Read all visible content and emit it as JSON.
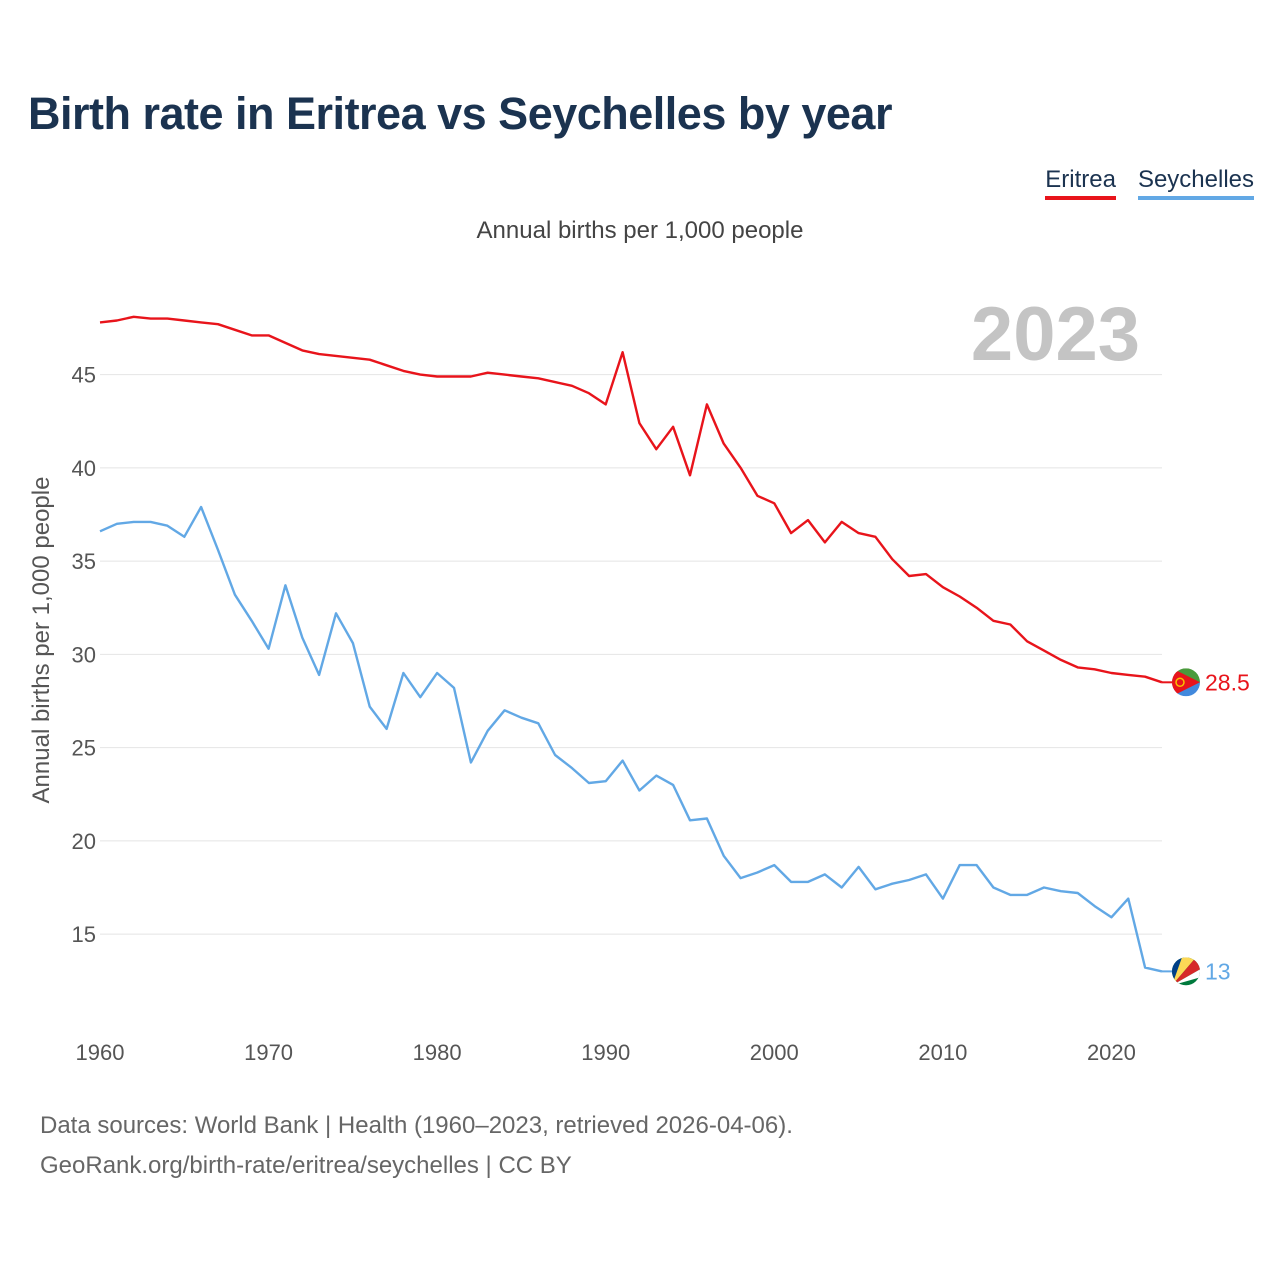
{
  "chart_data": {
    "type": "line",
    "title": "Birth rate in Eritrea vs Seychelles by year",
    "subtitle": "Annual births per 1,000 people",
    "ylabel": "Annual births per 1,000 people",
    "xlabel": "",
    "year_label": "2023",
    "xlim": [
      1960,
      2023
    ],
    "ylim": [
      10.5,
      49
    ],
    "yticks": [
      15,
      20,
      25,
      30,
      35,
      40,
      45
    ],
    "xticks": [
      1960,
      1970,
      1980,
      1990,
      2000,
      2010,
      2020
    ],
    "legend_position": "top-right",
    "x": [
      1960,
      1961,
      1962,
      1963,
      1964,
      1965,
      1966,
      1967,
      1968,
      1969,
      1970,
      1971,
      1972,
      1973,
      1974,
      1975,
      1976,
      1977,
      1978,
      1979,
      1980,
      1981,
      1982,
      1983,
      1984,
      1985,
      1986,
      1987,
      1988,
      1989,
      1990,
      1991,
      1992,
      1993,
      1994,
      1995,
      1996,
      1997,
      1998,
      1999,
      2000,
      2001,
      2002,
      2003,
      2004,
      2005,
      2006,
      2007,
      2008,
      2009,
      2010,
      2011,
      2012,
      2013,
      2014,
      2015,
      2016,
      2017,
      2018,
      2019,
      2020,
      2021,
      2022,
      2023
    ],
    "series": [
      {
        "name": "Eritrea",
        "color": "#e8141b",
        "end_label": "28.5",
        "values": [
          47.8,
          47.9,
          48.1,
          48.0,
          48.0,
          47.9,
          47.8,
          47.7,
          47.4,
          47.1,
          47.1,
          46.7,
          46.3,
          46.1,
          46.0,
          45.9,
          45.8,
          45.5,
          45.2,
          45.0,
          44.9,
          44.9,
          44.9,
          45.1,
          45.0,
          44.9,
          44.8,
          44.6,
          44.4,
          44.0,
          43.4,
          46.2,
          42.4,
          41.0,
          42.2,
          39.6,
          43.4,
          41.3,
          40.0,
          38.5,
          38.1,
          36.5,
          37.2,
          36.0,
          37.1,
          36.5,
          36.3,
          35.1,
          34.2,
          34.3,
          33.6,
          33.1,
          32.5,
          31.8,
          31.6,
          30.7,
          30.2,
          29.7,
          29.3,
          29.2,
          29.0,
          28.9,
          28.8,
          28.5
        ]
      },
      {
        "name": "Seychelles",
        "color": "#62a8e5",
        "end_label": "13",
        "values": [
          36.6,
          37.0,
          37.1,
          37.1,
          36.9,
          36.3,
          37.9,
          35.6,
          33.2,
          31.8,
          30.3,
          33.7,
          30.9,
          28.9,
          32.2,
          30.6,
          27.2,
          26.0,
          29.0,
          27.7,
          29.0,
          28.2,
          24.2,
          25.9,
          27.0,
          26.6,
          26.3,
          24.6,
          23.9,
          23.1,
          23.2,
          24.3,
          22.7,
          23.5,
          23.0,
          21.1,
          21.2,
          19.2,
          18.0,
          18.3,
          18.7,
          17.8,
          17.8,
          18.2,
          17.5,
          18.6,
          17.4,
          17.7,
          17.9,
          18.2,
          16.9,
          18.7,
          18.7,
          17.5,
          17.1,
          17.1,
          17.5,
          17.3,
          17.2,
          16.5,
          15.9,
          16.9,
          13.2,
          13.0
        ]
      }
    ]
  },
  "footer": {
    "line1": "Data sources: World Bank | Health (1960–2023, retrieved 2026-04-06).",
    "line2": "GeoRank.org/birth-rate/eritrea/seychelles | CC BY"
  },
  "flags": [
    {
      "country": "Eritrea",
      "icon": "eritrea-flag-icon",
      "colors": {
        "green": "#4a9a3c",
        "red": "#e8141b",
        "blue": "#4189dd",
        "gold": "#f8c300"
      }
    },
    {
      "country": "Seychelles",
      "icon": "seychelles-flag-icon",
      "colors": {
        "blue": "#003f87",
        "yellow": "#fcd856",
        "red": "#d62828",
        "white": "#ffffff",
        "green": "#007a3d"
      }
    }
  ]
}
